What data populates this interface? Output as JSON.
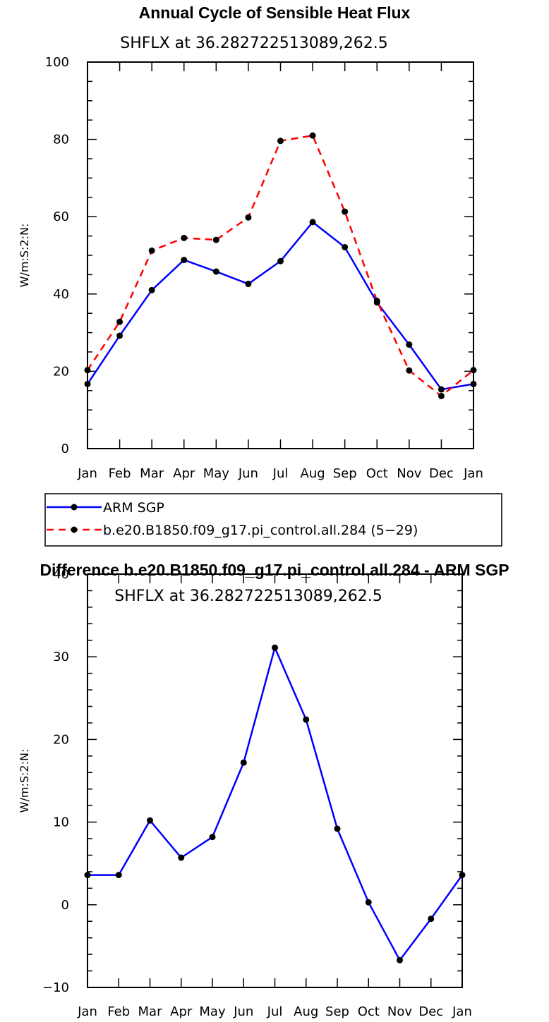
{
  "chart_data": [
    {
      "type": "line",
      "title": "Annual Cycle of Sensible Heat Flux",
      "subtitle": "SHFLX at 36.282722513089,262.5",
      "xlabel": "",
      "ylabel": "W/m:S:2:N:",
      "categories": [
        "Jan",
        "Feb",
        "Mar",
        "Apr",
        "May",
        "Jun",
        "Jul",
        "Aug",
        "Sep",
        "Oct",
        "Nov",
        "Dec",
        "Jan"
      ],
      "ylim": [
        0,
        100
      ],
      "yticks": [
        0,
        20,
        40,
        60,
        80,
        100
      ],
      "yminor_step": 5,
      "legend_placement": "bottom",
      "series": [
        {
          "name": "ARM SGP",
          "color": "#0000ff",
          "dash": "solid",
          "values": [
            16.7,
            29.2,
            41.0,
            48.8,
            45.8,
            42.6,
            48.5,
            58.6,
            52.1,
            37.8,
            26.9,
            15.3,
            16.7
          ]
        },
        {
          "name": "b.e20.B1850.f09_g17.pi_control.all.284 (5−29)",
          "color": "#ff0000",
          "dash": "dashed",
          "values": [
            20.3,
            32.8,
            51.2,
            54.5,
            54.0,
            59.8,
            79.6,
            81.0,
            61.3,
            38.2,
            20.2,
            13.6,
            20.3
          ]
        }
      ]
    },
    {
      "type": "line",
      "title": "Difference b.e20.B1850.f09_g17.pi_control.all.284 - ARM SGP",
      "subtitle": "SHFLX at 36.282722513089,262.5",
      "xlabel": "",
      "ylabel": "W/m:S:2:N:",
      "categories": [
        "Jan",
        "Feb",
        "Mar",
        "Apr",
        "May",
        "Jun",
        "Jul",
        "Aug",
        "Sep",
        "Oct",
        "Nov",
        "Dec",
        "Jan"
      ],
      "ylim": [
        -10,
        40
      ],
      "yticks": [
        -10,
        0,
        10,
        20,
        30,
        40
      ],
      "yminor_step": 2,
      "series": [
        {
          "color": "#0000ff",
          "dash": "solid",
          "values": [
            3.6,
            3.6,
            10.2,
            5.7,
            8.2,
            17.2,
            31.1,
            22.4,
            9.2,
            0.3,
            -6.7,
            -1.7,
            3.6
          ]
        }
      ]
    }
  ]
}
